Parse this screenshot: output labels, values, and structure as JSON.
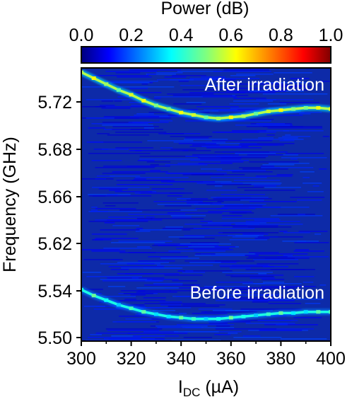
{
  "chart_data": {
    "type": "heatmap",
    "title": "",
    "xlabel": {
      "main": "I",
      "subscript": "DC",
      "unit": " (µA)"
    },
    "ylabel": "Frequency (GHz)",
    "x_range": [
      300,
      400
    ],
    "x_ticks": [
      "300",
      "320",
      "340",
      "360",
      "380",
      "400"
    ],
    "y_ticks": [
      "5.50",
      "5.54",
      "5.62",
      "5.66",
      "5.68",
      "5.72"
    ],
    "y_tick_values": [
      5.5,
      5.54,
      5.62,
      5.66,
      5.68,
      5.72
    ],
    "y_axis_note": "broken frequency axis; ticks are not evenly spaced in value",
    "colorbar": {
      "label": "Power (dB)",
      "ticks": [
        "0.0",
        "0.2",
        "0.4",
        "0.6",
        "0.8",
        "1.0"
      ],
      "range": [
        0.0,
        1.0
      ],
      "colormap": "jet"
    },
    "background_level": 0.12,
    "annotations": [
      "After irradiation",
      "Before irradiation"
    ],
    "series": [
      {
        "name": "After irradiation",
        "peak_power": 0.55,
        "x": [
          300,
          305,
          310,
          315,
          320,
          325,
          330,
          335,
          340,
          345,
          350,
          355,
          360,
          365,
          370,
          375,
          380,
          385,
          390,
          395,
          400
        ],
        "y": [
          5.745,
          5.74,
          5.735,
          5.73,
          5.726,
          5.721,
          5.717,
          5.714,
          5.711,
          5.709,
          5.707,
          5.706,
          5.707,
          5.708,
          5.71,
          5.712,
          5.713,
          5.714,
          5.715,
          5.715,
          5.714
        ]
      },
      {
        "name": "Before irradiation",
        "peak_power": 0.4,
        "x": [
          300,
          305,
          310,
          315,
          320,
          325,
          330,
          335,
          340,
          345,
          350,
          355,
          360,
          365,
          370,
          375,
          380,
          385,
          390,
          395,
          400
        ],
        "y": [
          5.542,
          5.536,
          5.532,
          5.528,
          5.525,
          5.522,
          5.52,
          5.518,
          5.517,
          5.516,
          5.516,
          5.516,
          5.517,
          5.518,
          5.519,
          5.52,
          5.521,
          5.521,
          5.522,
          5.522,
          5.522
        ]
      }
    ]
  }
}
